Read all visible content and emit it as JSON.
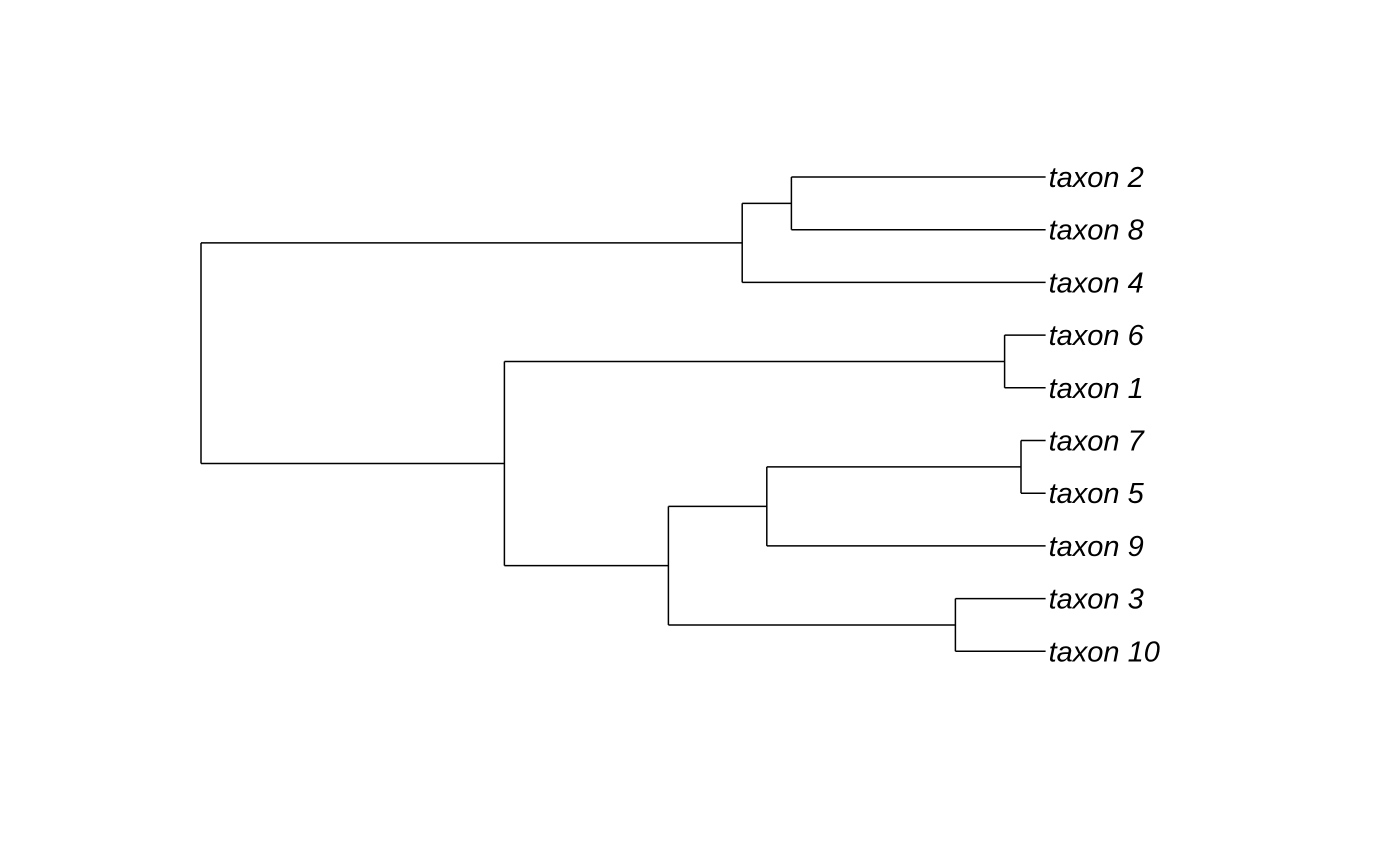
{
  "chart_data": {
    "type": "phylogenetic-tree",
    "layout": "rectangular, root on left, tips on right",
    "tips": [
      "taxon 2",
      "taxon 8",
      "taxon 4",
      "taxon 6",
      "taxon 1",
      "taxon 7",
      "taxon 5",
      "taxon 9",
      "taxon 3",
      "taxon 10"
    ],
    "nodes": [
      {
        "id": "root",
        "depth": 0.0,
        "children": [
          "n_a",
          "n_b"
        ]
      },
      {
        "id": "n_a",
        "depth": 0.66,
        "children": [
          "n_a1",
          "taxon 4"
        ]
      },
      {
        "id": "n_a1",
        "depth": 0.72,
        "children": [
          "taxon 2",
          "taxon 8"
        ]
      },
      {
        "id": "n_b",
        "depth": 0.37,
        "children": [
          "n_b1",
          "n_b2"
        ]
      },
      {
        "id": "n_b1",
        "depth": 0.98,
        "children": [
          "taxon 6",
          "taxon 1"
        ]
      },
      {
        "id": "n_b2",
        "depth": 0.57,
        "children": [
          "n_b3",
          "n_b5"
        ]
      },
      {
        "id": "n_b3",
        "depth": 0.69,
        "children": [
          "n_b4",
          "taxon 9"
        ]
      },
      {
        "id": "n_b4",
        "depth": 1.0,
        "children": [
          "taxon 7",
          "taxon 5"
        ]
      },
      {
        "id": "n_b5",
        "depth": 0.92,
        "children": [
          "taxon 3",
          "taxon 10"
        ]
      }
    ],
    "tip_depth": 1.03
  },
  "colors": {
    "branch": "#000000",
    "label": "#000000",
    "background": "#ffffff"
  }
}
